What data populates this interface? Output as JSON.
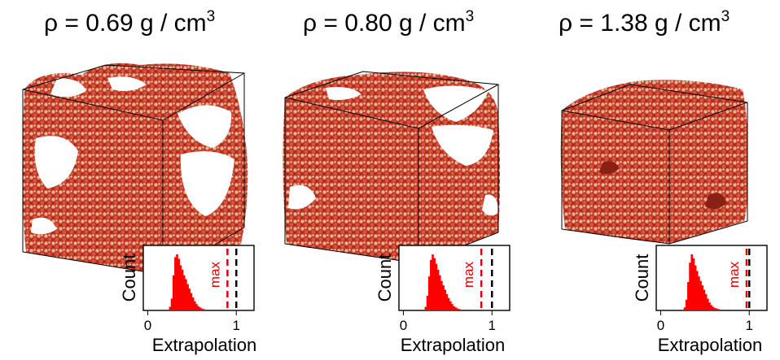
{
  "figure": {
    "panels": [
      {
        "title_prefix": "ρ = ",
        "density": "0.69",
        "unit": " g / cm",
        "unit_power": "3",
        "inset": {
          "y_label": "Count",
          "x_label": "Extrapolation",
          "x_ticks": [
            "0",
            "1"
          ],
          "max_label": "max",
          "max_value": 0.9,
          "reference_value": 1.0,
          "x_range": [
            -0.05,
            1.2
          ],
          "histogram": {
            "bin_start": 0.24,
            "bin_width": 0.02,
            "counts": [
              0.05,
              0.2,
              0.62,
              0.95,
              1.0,
              0.92,
              0.8,
              0.72,
              0.62,
              0.55,
              0.46,
              0.38,
              0.3,
              0.22,
              0.15,
              0.1,
              0.06,
              0.04,
              0.02,
              0.01
            ]
          }
        }
      },
      {
        "title_prefix": "ρ = ",
        "density": "0.80",
        "unit": " g / cm",
        "unit_power": "3",
        "inset": {
          "y_label": "Count",
          "x_label": "Extrapolation",
          "x_ticks": [
            "0",
            "1"
          ],
          "max_label": "max",
          "max_value": 0.88,
          "reference_value": 1.0,
          "x_range": [
            -0.05,
            1.2
          ],
          "histogram": {
            "bin_start": 0.24,
            "bin_width": 0.02,
            "counts": [
              0.05,
              0.25,
              0.6,
              0.9,
              1.0,
              0.93,
              0.83,
              0.72,
              0.62,
              0.52,
              0.44,
              0.36,
              0.28,
              0.21,
              0.15,
              0.1,
              0.06,
              0.04,
              0.02,
              0.01
            ]
          }
        }
      },
      {
        "title_prefix": "ρ = ",
        "density": "1.38",
        "unit": " g / cm",
        "unit_power": "3",
        "inset": {
          "y_label": "Count",
          "x_label": "Extrapolation",
          "x_ticks": [
            "0",
            "1"
          ],
          "max_label": "max",
          "max_value": 0.97,
          "reference_value": 1.0,
          "x_range": [
            -0.05,
            1.2
          ],
          "histogram": {
            "bin_start": 0.26,
            "bin_width": 0.02,
            "counts": [
              0.04,
              0.18,
              0.5,
              0.85,
              1.0,
              0.93,
              0.8,
              0.7,
              0.6,
              0.52,
              0.44,
              0.36,
              0.28,
              0.2,
              0.13,
              0.08,
              0.05,
              0.03,
              0.02,
              0.01
            ]
          }
        }
      }
    ],
    "colors": {
      "histogram": "#ff0000",
      "max_line": "#e00000",
      "reference_line": "#000000",
      "particle_fill": "#c83a2a",
      "particle_light": "#e9c9a0",
      "box_edge": "#000000"
    }
  }
}
